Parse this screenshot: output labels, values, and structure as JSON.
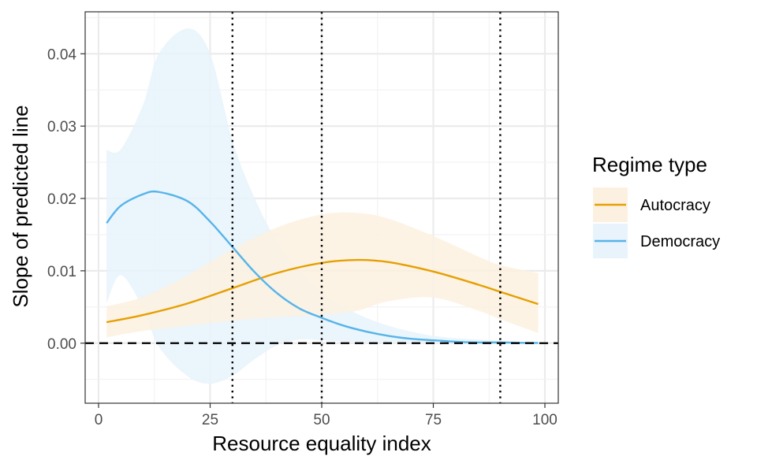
{
  "chart_data": {
    "type": "line",
    "xlabel": "Resource equality index",
    "ylabel": "Slope of predicted line",
    "xlim": [
      -3,
      103
    ],
    "ylim": [
      -0.0083,
      0.0458
    ],
    "x_ticks": [
      0,
      25,
      50,
      75,
      100
    ],
    "x_tick_labels": [
      "0",
      "25",
      "50",
      "75",
      "100"
    ],
    "y_ticks": [
      0,
      0.01,
      0.02,
      0.03,
      0.04
    ],
    "y_tick_labels": [
      "0.00",
      "0.01",
      "0.02",
      "0.03",
      "0.04"
    ],
    "grid": true,
    "legend": {
      "title": "Regime type",
      "position": "right"
    },
    "reference_lines": [
      {
        "orientation": "horizontal",
        "value": 0,
        "style": "dashed"
      },
      {
        "orientation": "vertical",
        "value": 30,
        "style": "dotted"
      },
      {
        "orientation": "vertical",
        "value": 50,
        "style": "dotted"
      },
      {
        "orientation": "vertical",
        "value": 90,
        "style": "dotted"
      }
    ],
    "series": [
      {
        "name": "Autocracy",
        "color": "#E69F00",
        "ribbon_color": "#FCF1E0",
        "x": [
          1.8,
          10,
          20,
          30,
          40,
          50,
          58,
          65,
          75,
          85,
          90,
          98.5
        ],
        "y": [
          0.0029,
          0.0039,
          0.0055,
          0.0076,
          0.0097,
          0.0111,
          0.0115,
          0.0112,
          0.0099,
          0.0081,
          0.0071,
          0.0054
        ],
        "lower": [
          0.0008,
          0.0017,
          0.0024,
          0.0031,
          0.0036,
          0.0039,
          0.0045,
          0.0058,
          0.0063,
          0.0045,
          0.0033,
          0.0014
        ],
        "upper": [
          0.0051,
          0.0064,
          0.0094,
          0.013,
          0.016,
          0.0178,
          0.018,
          0.0172,
          0.0148,
          0.012,
          0.0108,
          0.0097
        ]
      },
      {
        "name": "Democracy",
        "color": "#56B4E9",
        "ribbon_color": "#E8F3FC",
        "x": [
          1.8,
          5,
          10,
          13.5,
          20,
          25,
          30,
          35,
          40,
          45,
          50,
          55,
          60,
          65,
          70,
          75,
          80,
          85,
          90,
          95,
          98.5
        ],
        "y": [
          0.0166,
          0.019,
          0.0206,
          0.0209,
          0.0196,
          0.0168,
          0.0133,
          0.0098,
          0.0069,
          0.0048,
          0.0035,
          0.0024,
          0.0016,
          0.001,
          0.0006,
          0.0004,
          0.0002,
          0.0001,
          0.0001,
          5e-05,
          3e-05
        ],
        "lower": [
          0.0055,
          0.0094,
          0.0048,
          -0.0005,
          -0.0046,
          -0.0056,
          -0.0045,
          -0.0022,
          -0.0003,
          0.0005,
          0.0004,
          0.0002,
          0.0001,
          5e-05,
          0.0,
          -1e-05,
          -2e-05,
          -2e-05,
          -2e-05,
          -2e-05,
          -2e-05
        ],
        "upper": [
          0.0267,
          0.0268,
          0.033,
          0.04,
          0.0435,
          0.04,
          0.028,
          0.02,
          0.014,
          0.01,
          0.007,
          0.005,
          0.0035,
          0.0024,
          0.0016,
          0.001,
          0.0007,
          0.0005,
          0.0003,
          0.00015,
          0.0001
        ]
      }
    ]
  }
}
